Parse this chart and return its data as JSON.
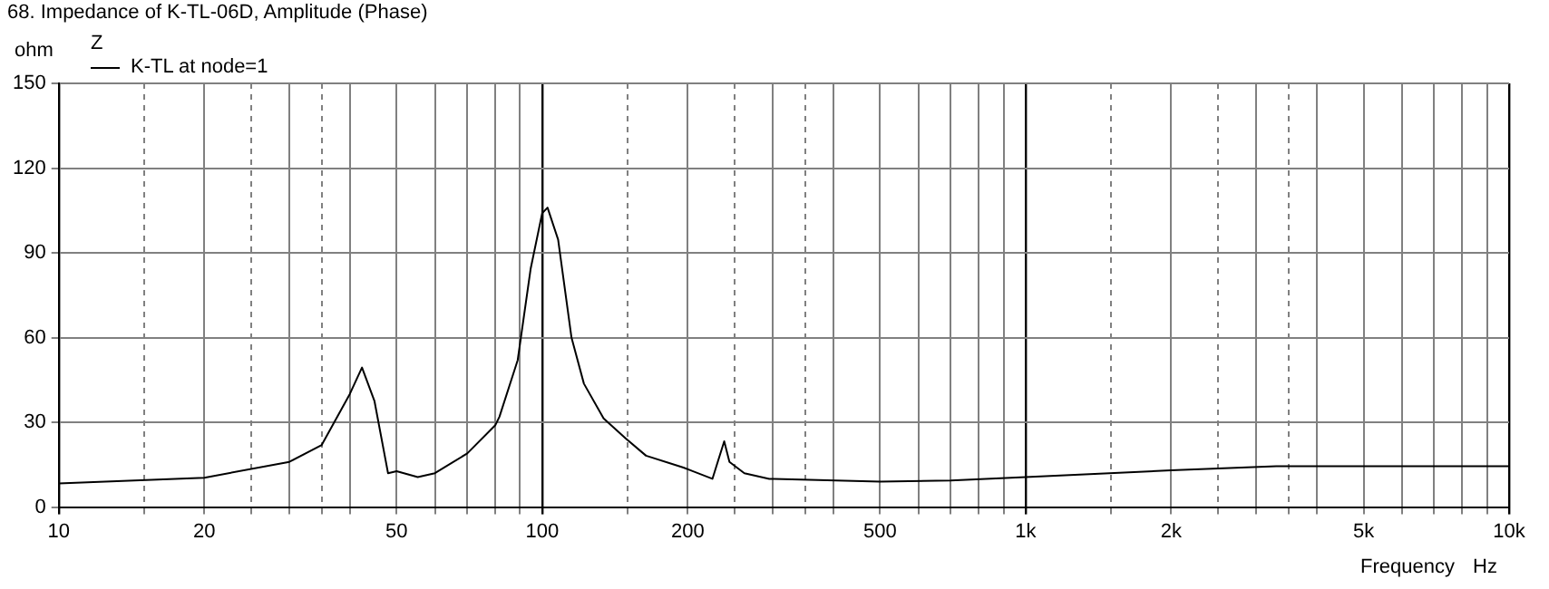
{
  "chart_data": {
    "type": "line",
    "title": "68. Impedance of K-TL-06D, Amplitude (Phase)",
    "ylabel": "ohm",
    "xlabel": "Frequency",
    "legend_title": "Z",
    "annotations": [
      "Hz"
    ],
    "log": "x",
    "grid": true,
    "legend": "top left",
    "marker": "none",
    "line_style": "solid",
    "xlim": [
      10,
      10000
    ],
    "ylim": [
      0,
      150
    ],
    "yticks": [
      0,
      30,
      60,
      90,
      120,
      150
    ],
    "xticks": [
      10,
      {
        "value": 15,
        "label": null
      },
      20,
      {
        "value": 25,
        "label": null
      },
      {
        "value": 30,
        "label": null
      },
      {
        "value": 35,
        "label": null
      },
      {
        "value": 40,
        "label": null
      },
      50,
      {
        "value": 60,
        "label": null
      },
      {
        "value": 70,
        "label": null
      },
      {
        "value": 80,
        "label": null
      },
      {
        "value": 90,
        "label": null
      },
      100,
      {
        "value": 150,
        "label": null
      },
      200,
      {
        "value": 250,
        "label": null
      },
      {
        "value": 300,
        "label": null
      },
      {
        "value": 350,
        "label": null
      },
      {
        "value": 400,
        "label": null
      },
      500,
      {
        "value": 600,
        "label": null
      },
      {
        "value": 700,
        "label": null
      },
      {
        "value": 800,
        "label": null
      },
      {
        "value": 900,
        "label": null
      },
      {
        "value": 1000,
        "label": "1k"
      },
      {
        "value": 1500,
        "label": null
      },
      {
        "value": 2000,
        "label": "2k"
      },
      {
        "value": 2500,
        "label": null
      },
      {
        "value": 3000,
        "label": null
      },
      {
        "value": 3500,
        "label": null
      },
      {
        "value": 4000,
        "label": null
      },
      {
        "value": 5000,
        "label": "5k"
      },
      {
        "value": 6000,
        "label": null
      },
      {
        "value": 7000,
        "label": null
      },
      {
        "value": 8000,
        "label": null
      },
      {
        "value": 9000,
        "label": null
      },
      {
        "value": 10000,
        "label": "10k"
      }
    ],
    "series": [
      {
        "name": "K-TL at node=1",
        "color": "#000000",
        "x": [
          10,
          20,
          30,
          35,
          40,
          42.4,
          45,
          48,
          50,
          55.3,
          60,
          70,
          80,
          81.6,
          89,
          94.7,
          100,
          102.6,
          107.9,
          115,
          122,
          134,
          148.8,
          164,
          196,
          225,
          238,
          244,
          262,
          295,
          302,
          500,
          700,
          1000,
          2000,
          3300,
          10000
        ],
        "values": [
          8.4,
          10.4,
          16,
          22,
          40,
          49.4,
          37.5,
          12,
          12.7,
          10.6,
          12,
          19,
          29,
          32,
          52,
          84.5,
          104,
          106,
          94.7,
          60,
          43.7,
          31.4,
          24.3,
          18.2,
          14,
          10,
          23.3,
          16,
          12,
          10,
          10,
          9,
          9.4,
          10.6,
          13,
          14.5,
          14.5
        ]
      }
    ]
  }
}
